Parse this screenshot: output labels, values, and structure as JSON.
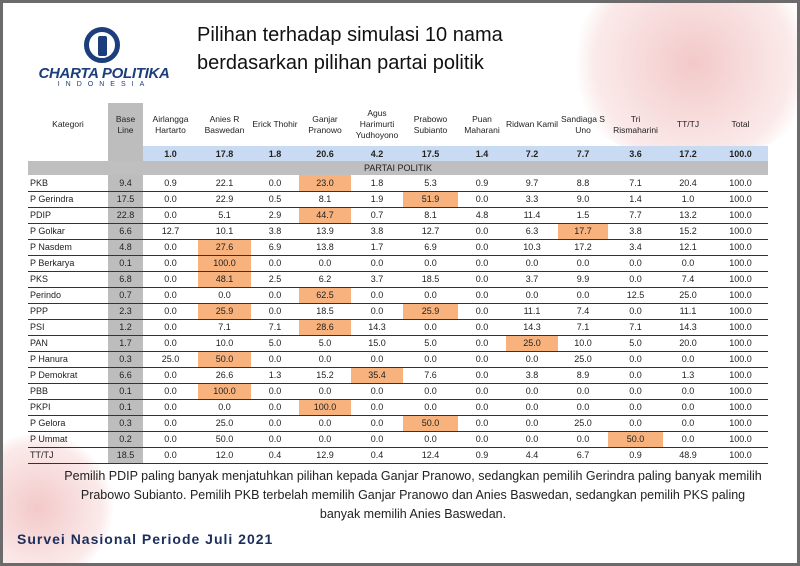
{
  "logo": {
    "brand": "CHARTA POLITIKA",
    "sub": "INDONESIA"
  },
  "title_lines": [
    "Pilihan terhadap simulasi 10 nama",
    "berdasarkan pilihan partai politik"
  ],
  "table": {
    "headers": [
      "Kategori",
      "Base Line",
      "Airlangga Hartarto",
      "Anies R Baswedan",
      "Erick Thohir",
      "Ganjar Pranowo",
      "Agus Harimurti Yudhoyono",
      "Prabowo Subianto",
      "Puan Maharani",
      "Ridwan Kamil",
      "Sandiaga S Uno",
      "Tri Rismaharini",
      "TT/TJ",
      "Total"
    ],
    "baseline": [
      "1.0",
      "17.8",
      "1.8",
      "20.6",
      "4.2",
      "17.5",
      "1.4",
      "7.2",
      "7.7",
      "3.6",
      "17.2",
      "100.0"
    ],
    "section": "PARTAI POLITIK",
    "highlight_color": "#f7b27d",
    "rows": [
      {
        "cat": "PKB",
        "values": [
          "9.4",
          "0.9",
          "22.1",
          "0.0",
          "23.0",
          "1.8",
          "5.3",
          "0.9",
          "9.7",
          "8.8",
          "7.1",
          "20.4",
          "100.0"
        ],
        "highlight": 4
      },
      {
        "cat": "P Gerindra",
        "values": [
          "17.5",
          "0.0",
          "22.9",
          "0.5",
          "8.1",
          "1.9",
          "51.9",
          "0.0",
          "3.3",
          "9.0",
          "1.4",
          "1.0",
          "100.0"
        ],
        "highlight": 6
      },
      {
        "cat": "PDIP",
        "values": [
          "22.8",
          "0.0",
          "5.1",
          "2.9",
          "44.7",
          "0.7",
          "8.1",
          "4.8",
          "11.4",
          "1.5",
          "7.7",
          "13.2",
          "100.0"
        ],
        "highlight": 4
      },
      {
        "cat": "P Golkar",
        "values": [
          "6.6",
          "12.7",
          "10.1",
          "3.8",
          "13.9",
          "3.8",
          "12.7",
          "0.0",
          "6.3",
          "17.7",
          "3.8",
          "15.2",
          "100.0"
        ],
        "highlight": 9
      },
      {
        "cat": "P Nasdem",
        "values": [
          "4.8",
          "0.0",
          "27.6",
          "6.9",
          "13.8",
          "1.7",
          "6.9",
          "0.0",
          "10.3",
          "17.2",
          "3.4",
          "12.1",
          "100.0"
        ],
        "highlight": 2
      },
      {
        "cat": "P Berkarya",
        "values": [
          "0.1",
          "0.0",
          "100.0",
          "0.0",
          "0.0",
          "0.0",
          "0.0",
          "0.0",
          "0.0",
          "0.0",
          "0.0",
          "0.0",
          "100.0"
        ],
        "highlight": 2
      },
      {
        "cat": "PKS",
        "values": [
          "6.8",
          "0.0",
          "48.1",
          "2.5",
          "6.2",
          "3.7",
          "18.5",
          "0.0",
          "3.7",
          "9.9",
          "0.0",
          "7.4",
          "100.0"
        ],
        "highlight": 2
      },
      {
        "cat": "Perindo",
        "values": [
          "0.7",
          "0.0",
          "0.0",
          "0.0",
          "62.5",
          "0.0",
          "0.0",
          "0.0",
          "0.0",
          "0.0",
          "12.5",
          "25.0",
          "100.0"
        ],
        "highlight": 4
      },
      {
        "cat": "PPP",
        "values": [
          "2.3",
          "0.0",
          "25.9",
          "0.0",
          "18.5",
          "0.0",
          "25.9",
          "0.0",
          "11.1",
          "7.4",
          "0.0",
          "11.1",
          "100.0"
        ],
        "highlight": [
          2,
          6
        ]
      },
      {
        "cat": "PSI",
        "values": [
          "1.2",
          "0.0",
          "7.1",
          "7.1",
          "28.6",
          "14.3",
          "0.0",
          "0.0",
          "14.3",
          "7.1",
          "7.1",
          "14.3",
          "100.0"
        ],
        "highlight": 4
      },
      {
        "cat": "PAN",
        "values": [
          "1.7",
          "0.0",
          "10.0",
          "5.0",
          "5.0",
          "15.0",
          "5.0",
          "0.0",
          "25.0",
          "10.0",
          "5.0",
          "20.0",
          "100.0"
        ],
        "highlight": 8
      },
      {
        "cat": "P Hanura",
        "values": [
          "0.3",
          "25.0",
          "50.0",
          "0.0",
          "0.0",
          "0.0",
          "0.0",
          "0.0",
          "0.0",
          "25.0",
          "0.0",
          "0.0",
          "100.0"
        ],
        "highlight": 2
      },
      {
        "cat": "P Demokrat",
        "values": [
          "6.6",
          "0.0",
          "26.6",
          "1.3",
          "15.2",
          "35.4",
          "7.6",
          "0.0",
          "3.8",
          "8.9",
          "0.0",
          "1.3",
          "100.0"
        ],
        "highlight": 5
      },
      {
        "cat": "PBB",
        "values": [
          "0.1",
          "0.0",
          "100.0",
          "0.0",
          "0.0",
          "0.0",
          "0.0",
          "0.0",
          "0.0",
          "0.0",
          "0.0",
          "0.0",
          "100.0"
        ],
        "highlight": 2
      },
      {
        "cat": "PKPI",
        "values": [
          "0.1",
          "0.0",
          "0.0",
          "0.0",
          "100.0",
          "0.0",
          "0.0",
          "0.0",
          "0.0",
          "0.0",
          "0.0",
          "0.0",
          "100.0"
        ],
        "highlight": 4
      },
      {
        "cat": "P Gelora",
        "values": [
          "0.3",
          "0.0",
          "25.0",
          "0.0",
          "0.0",
          "0.0",
          "50.0",
          "0.0",
          "0.0",
          "25.0",
          "0.0",
          "0.0",
          "100.0"
        ],
        "highlight": 6
      },
      {
        "cat": "P Ummat",
        "values": [
          "0.2",
          "0.0",
          "50.0",
          "0.0",
          "0.0",
          "0.0",
          "0.0",
          "0.0",
          "0.0",
          "0.0",
          "50.0",
          "0.0",
          "100.0"
        ],
        "highlight": 10
      },
      {
        "cat": "TT/TJ",
        "values": [
          "18.5",
          "0.0",
          "12.0",
          "0.4",
          "12.9",
          "0.4",
          "12.4",
          "0.9",
          "4.4",
          "6.7",
          "0.9",
          "48.9",
          "100.0"
        ],
        "highlight": null
      }
    ]
  },
  "note": "Pemilih PDIP paling banyak menjatuhkan pilihan kepada Ganjar Pranowo, sedangkan pemilih Gerindra paling banyak memilih Prabowo Subianto. Pemilih PKB terbelah memilih Ganjar Pranowo dan Anies Baswedan, sedangkan pemilih PKS paling banyak memilih Anies Baswedan.",
  "footer": "Survei Nasional Periode Juli 2021"
}
